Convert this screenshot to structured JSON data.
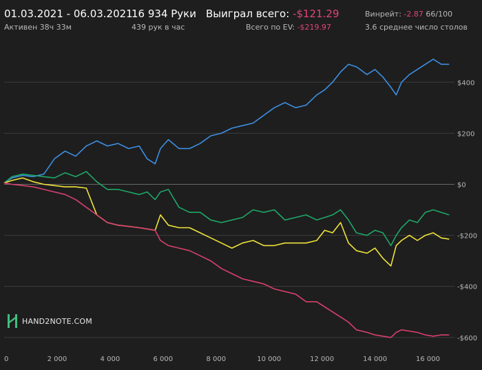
{
  "header": {
    "date_range": "01.03.2021 - 06.03.2021",
    "active_time": "Активен 38ч 33м",
    "hands_count": "16 934 Руки",
    "hands_per_hour": "439 рук в час",
    "won_label": "Выиграл всего:",
    "won_value": "-$121.29",
    "ev_label": "Всего по EV:",
    "ev_value": "-$219.97",
    "winrate_label": "Винрейт:",
    "winrate_value": "-2.87",
    "winrate_unit": "66/100",
    "avg_tables": "3.6 среднее число столов"
  },
  "logo": {
    "text": "HAND2NOTE.COM"
  },
  "colors": {
    "background": "#1e1e1e",
    "grid": "#3c3c3c",
    "zero_line": "#6a6a6a",
    "blue": "#3d8fe3",
    "green": "#1ea868",
    "yellow": "#f0e43a",
    "red": "#d9406e",
    "negative_text": "#e0457b"
  },
  "chart_data": {
    "type": "line",
    "xlim": [
      0,
      17000
    ],
    "ylim": [
      -660,
      560
    ],
    "x_ticks": [
      0,
      2000,
      4000,
      6000,
      8000,
      10000,
      12000,
      14000,
      16000
    ],
    "x_tick_labels": [
      "0",
      "2 000",
      "4 000",
      "6 000",
      "8 000",
      "10 000",
      "12 000",
      "14 000",
      "16 000"
    ],
    "y_ticks": [
      400,
      200,
      0,
      -200,
      -400,
      -600
    ],
    "y_tick_labels": [
      "$400",
      "$200",
      "$0",
      "-$200",
      "-$400",
      "-$600"
    ],
    "grid": true,
    "series": [
      {
        "color": "#3d8fe3",
        "x": [
          0,
          300,
          700,
          1100,
          1500,
          1900,
          2300,
          2700,
          3100,
          3500,
          3900,
          4300,
          4700,
          5100,
          5400,
          5700,
          5900,
          6200,
          6600,
          7000,
          7400,
          7800,
          8200,
          8600,
          9000,
          9400,
          9800,
          10200,
          10600,
          11000,
          11400,
          11800,
          12100,
          12400,
          12700,
          13000,
          13300,
          13700,
          14000,
          14300,
          14600,
          14800,
          15000,
          15300,
          15600,
          15900,
          16200,
          16500,
          16800
        ],
        "y": [
          5,
          25,
          35,
          30,
          40,
          100,
          130,
          110,
          150,
          170,
          150,
          160,
          140,
          150,
          100,
          80,
          140,
          175,
          140,
          140,
          160,
          190,
          200,
          220,
          230,
          240,
          270,
          300,
          320,
          300,
          310,
          350,
          370,
          400,
          440,
          470,
          460,
          430,
          450,
          420,
          380,
          350,
          400,
          430,
          450,
          470,
          490,
          470,
          470
        ]
      },
      {
        "color": "#1ea868",
        "x": [
          0,
          300,
          700,
          1100,
          1500,
          1900,
          2300,
          2700,
          3100,
          3500,
          3900,
          4300,
          4700,
          5100,
          5400,
          5700,
          5900,
          6200,
          6600,
          7000,
          7400,
          7800,
          8200,
          8600,
          9000,
          9400,
          9800,
          10200,
          10600,
          11000,
          11400,
          11800,
          12100,
          12400,
          12700,
          13000,
          13300,
          13700,
          14000,
          14300,
          14600,
          14800,
          15000,
          15300,
          15600,
          15900,
          16200,
          16500,
          16800
        ],
        "y": [
          5,
          30,
          40,
          35,
          30,
          25,
          45,
          30,
          50,
          10,
          -20,
          -20,
          -30,
          -40,
          -30,
          -60,
          -30,
          -20,
          -90,
          -110,
          -110,
          -140,
          -150,
          -140,
          -130,
          -100,
          -110,
          -100,
          -140,
          -130,
          -120,
          -140,
          -130,
          -120,
          -100,
          -140,
          -190,
          -200,
          -180,
          -190,
          -240,
          -200,
          -170,
          -140,
          -150,
          -110,
          -100,
          -110,
          -120
        ]
      },
      {
        "color": "#f0e43a",
        "x": [
          0,
          300,
          700,
          1100,
          1500,
          1900,
          2300,
          2700,
          3100,
          3500,
          3900,
          4300,
          4700,
          5100,
          5400,
          5700,
          5900,
          6200,
          6600,
          7000,
          7400,
          7800,
          8200,
          8600,
          9000,
          9400,
          9800,
          10200,
          10600,
          11000,
          11400,
          11800,
          12100,
          12400,
          12700,
          13000,
          13300,
          13700,
          14000,
          14300,
          14600,
          14800,
          15000,
          15300,
          15600,
          15900,
          16200,
          16500,
          16800
        ],
        "y": [
          5,
          15,
          25,
          10,
          0,
          -5,
          -10,
          -10,
          -15,
          -120,
          -150,
          -160,
          -165,
          -170,
          -175,
          -180,
          -120,
          -160,
          -170,
          -170,
          -190,
          -210,
          -230,
          -250,
          -230,
          -220,
          -240,
          -240,
          -230,
          -230,
          -230,
          -220,
          -180,
          -190,
          -150,
          -230,
          -260,
          -270,
          -250,
          -290,
          -320,
          -240,
          -220,
          -200,
          -220,
          -200,
          -190,
          -210,
          -215
        ]
      },
      {
        "color": "#d9406e",
        "x": [
          0,
          300,
          700,
          1100,
          1500,
          1900,
          2300,
          2700,
          3100,
          3500,
          3900,
          4300,
          4700,
          5100,
          5400,
          5700,
          5900,
          6200,
          6600,
          7000,
          7400,
          7800,
          8200,
          8600,
          9000,
          9400,
          9800,
          10200,
          10600,
          11000,
          11400,
          11800,
          12100,
          12400,
          12700,
          13000,
          13300,
          13700,
          14000,
          14300,
          14600,
          14800,
          15000,
          15300,
          15600,
          15900,
          16200,
          16500,
          16800
        ],
        "y": [
          5,
          0,
          -5,
          -10,
          -20,
          -30,
          -40,
          -60,
          -90,
          -120,
          -150,
          -160,
          -165,
          -170,
          -175,
          -180,
          -220,
          -240,
          -250,
          -260,
          -280,
          -300,
          -330,
          -350,
          -370,
          -380,
          -390,
          -410,
          -420,
          -430,
          -460,
          -460,
          -480,
          -500,
          -520,
          -540,
          -570,
          -580,
          -590,
          -595,
          -600,
          -580,
          -570,
          -575,
          -580,
          -590,
          -595,
          -590,
          -590
        ]
      }
    ]
  }
}
